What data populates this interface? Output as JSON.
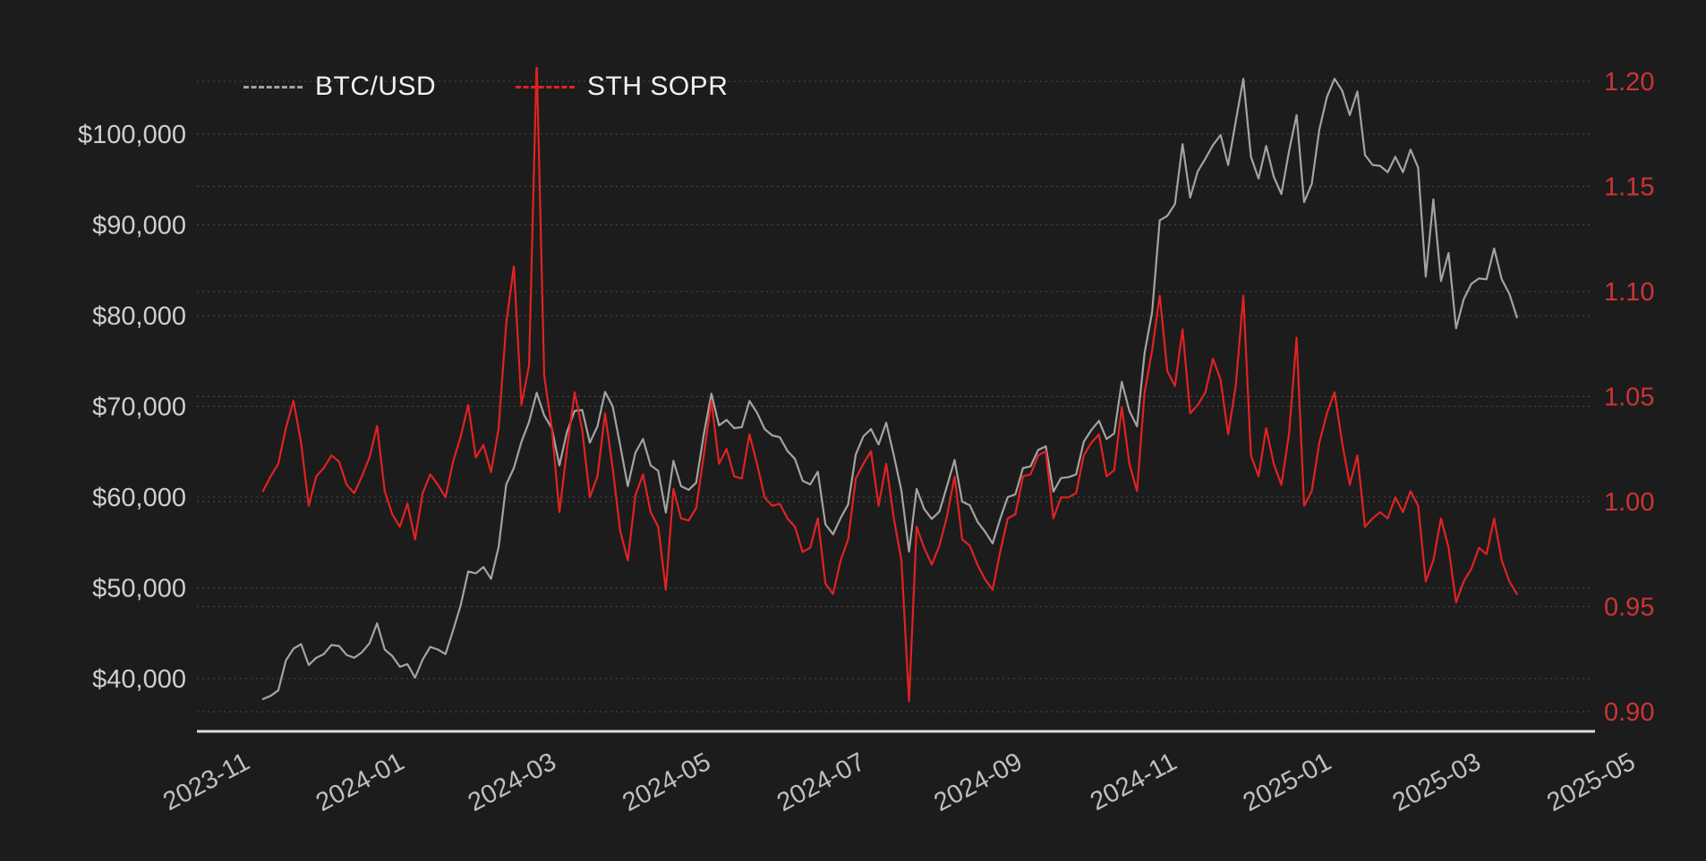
{
  "page": {
    "background": "#1c1c1c"
  },
  "legend": {
    "items": [
      {
        "label": "BTC/USD",
        "color": "#a3a3a3"
      },
      {
        "label": "STH SOPR",
        "color": "#e12222"
      }
    ]
  },
  "chart_data": {
    "type": "line",
    "title": "",
    "grid": "dashed",
    "legend_position": "top-left",
    "x_axis": {
      "start": "2023-11-01",
      "end": "2025-05-01",
      "tick_labels": [
        "2023-11",
        "2024-01",
        "2024-03",
        "2024-05",
        "2024-07",
        "2024-09",
        "2024-11",
        "2025-01",
        "2025-03",
        "2025-05"
      ]
    },
    "left_axis": {
      "name": "BTC/USD price",
      "tick_values": [
        100000,
        90000,
        80000,
        70000,
        60000,
        50000,
        40000
      ],
      "tick_labels": [
        "$100,000",
        "$90,000",
        "$80,000",
        "$70,000",
        "$60,000",
        "$50,000",
        "$40,000"
      ],
      "color": "#cfcfcf"
    },
    "right_axis": {
      "name": "STH SOPR",
      "tick_values": [
        1.2,
        1.15,
        1.1,
        1.05,
        1.0,
        0.95,
        0.9
      ],
      "tick_labels": [
        "1.20",
        "1.15",
        "1.10",
        "1.05",
        "1.00",
        "0.95",
        "0.90"
      ],
      "color": "#cd3434"
    },
    "series": [
      {
        "name": "BTC/USD",
        "axis": "left",
        "color": "#a3a3a3",
        "start_date": "2023-11-25",
        "step_days": 3,
        "values": [
          37750,
          38100,
          38700,
          42000,
          43300,
          43800,
          41500,
          42300,
          42700,
          43700,
          43600,
          42600,
          42300,
          42900,
          43900,
          46100,
          43200,
          42500,
          41300,
          41600,
          40100,
          42100,
          43500,
          43200,
          42700,
          45300,
          48100,
          51800,
          51600,
          52300,
          51000,
          54500,
          61400,
          63200,
          66100,
          68300,
          71500,
          69000,
          67600,
          63500,
          67200,
          69500,
          69600,
          66000,
          67800,
          71600,
          70000,
          65700,
          61200,
          64900,
          66400,
          63500,
          62900,
          58300,
          64000,
          61200,
          60800,
          61600,
          66900,
          71400,
          67900,
          68500,
          67600,
          67700,
          70600,
          69300,
          67500,
          66800,
          66600,
          65100,
          64200,
          61800,
          61400,
          62800,
          57000,
          55900,
          57700,
          59200,
          64700,
          66700,
          67500,
          65800,
          68200,
          64600,
          60700,
          54000,
          60900,
          58700,
          57600,
          58400,
          61200,
          64100,
          59500,
          59100,
          57300,
          56200,
          54900,
          57600,
          60000,
          60300,
          63200,
          63400,
          65200,
          65600,
          60600,
          62100,
          62200,
          62500,
          66100,
          67400,
          68400,
          66400,
          67000,
          72700,
          69500,
          67800,
          75900,
          80400,
          90500,
          91000,
          92300,
          98900,
          93000,
          95900,
          97300,
          98800,
          99900,
          96600,
          101400,
          106100,
          97500,
          95100,
          98700,
          95300,
          93400,
          98100,
          102100,
          92500,
          94500,
          100500,
          104100,
          106100,
          104800,
          102100,
          104700,
          97700,
          96600,
          96500,
          95800,
          97500,
          95800,
          98300,
          96300,
          84300,
          92800,
          83800,
          86900,
          78600,
          81800,
          83500,
          84100,
          84000,
          87400,
          84000,
          82400,
          79800
        ]
      },
      {
        "name": "STH SOPR",
        "axis": "right",
        "color": "#e12222",
        "start_date": "2023-11-25",
        "step_days": 3,
        "values": [
          1.005,
          1.012,
          1.018,
          1.035,
          1.048,
          1.028,
          0.998,
          1.012,
          1.016,
          1.022,
          1.019,
          1.008,
          1.004,
          1.012,
          1.021,
          1.036,
          1.005,
          0.994,
          0.988,
          0.999,
          0.982,
          1.004,
          1.013,
          1.008,
          1.002,
          1.019,
          1.031,
          1.046,
          1.021,
          1.027,
          1.014,
          1.035,
          1.085,
          1.112,
          1.046,
          1.065,
          1.21,
          1.06,
          1.035,
          0.995,
          1.025,
          1.052,
          1.034,
          1.002,
          1.012,
          1.042,
          1.016,
          0.986,
          0.972,
          1.003,
          1.013,
          0.995,
          0.988,
          0.958,
          1.006,
          0.992,
          0.991,
          0.997,
          1.022,
          1.048,
          1.018,
          1.025,
          1.012,
          1.011,
          1.032,
          1.018,
          1.002,
          0.998,
          0.999,
          0.992,
          0.988,
          0.976,
          0.978,
          0.992,
          0.961,
          0.956,
          0.972,
          0.982,
          1.011,
          1.018,
          1.024,
          0.998,
          1.018,
          0.992,
          0.972,
          0.905,
          0.988,
          0.978,
          0.97,
          0.979,
          0.993,
          1.012,
          0.982,
          0.979,
          0.97,
          0.963,
          0.958,
          0.976,
          0.992,
          0.994,
          1.012,
          1.013,
          1.022,
          1.024,
          0.992,
          1.002,
          1.002,
          1.004,
          1.022,
          1.028,
          1.032,
          1.012,
          1.015,
          1.045,
          1.018,
          1.005,
          1.052,
          1.072,
          1.098,
          1.062,
          1.055,
          1.082,
          1.042,
          1.046,
          1.052,
          1.068,
          1.058,
          1.032,
          1.055,
          1.098,
          1.022,
          1.012,
          1.035,
          1.018,
          1.008,
          1.032,
          1.078,
          0.998,
          1.005,
          1.028,
          1.042,
          1.052,
          1.028,
          1.008,
          1.022,
          0.988,
          0.992,
          0.995,
          0.992,
          1.002,
          0.995,
          1.005,
          0.998,
          0.962,
          0.972,
          0.992,
          0.978,
          0.952,
          0.962,
          0.968,
          0.978,
          0.975,
          0.992,
          0.972,
          0.962,
          0.956
        ]
      }
    ]
  }
}
